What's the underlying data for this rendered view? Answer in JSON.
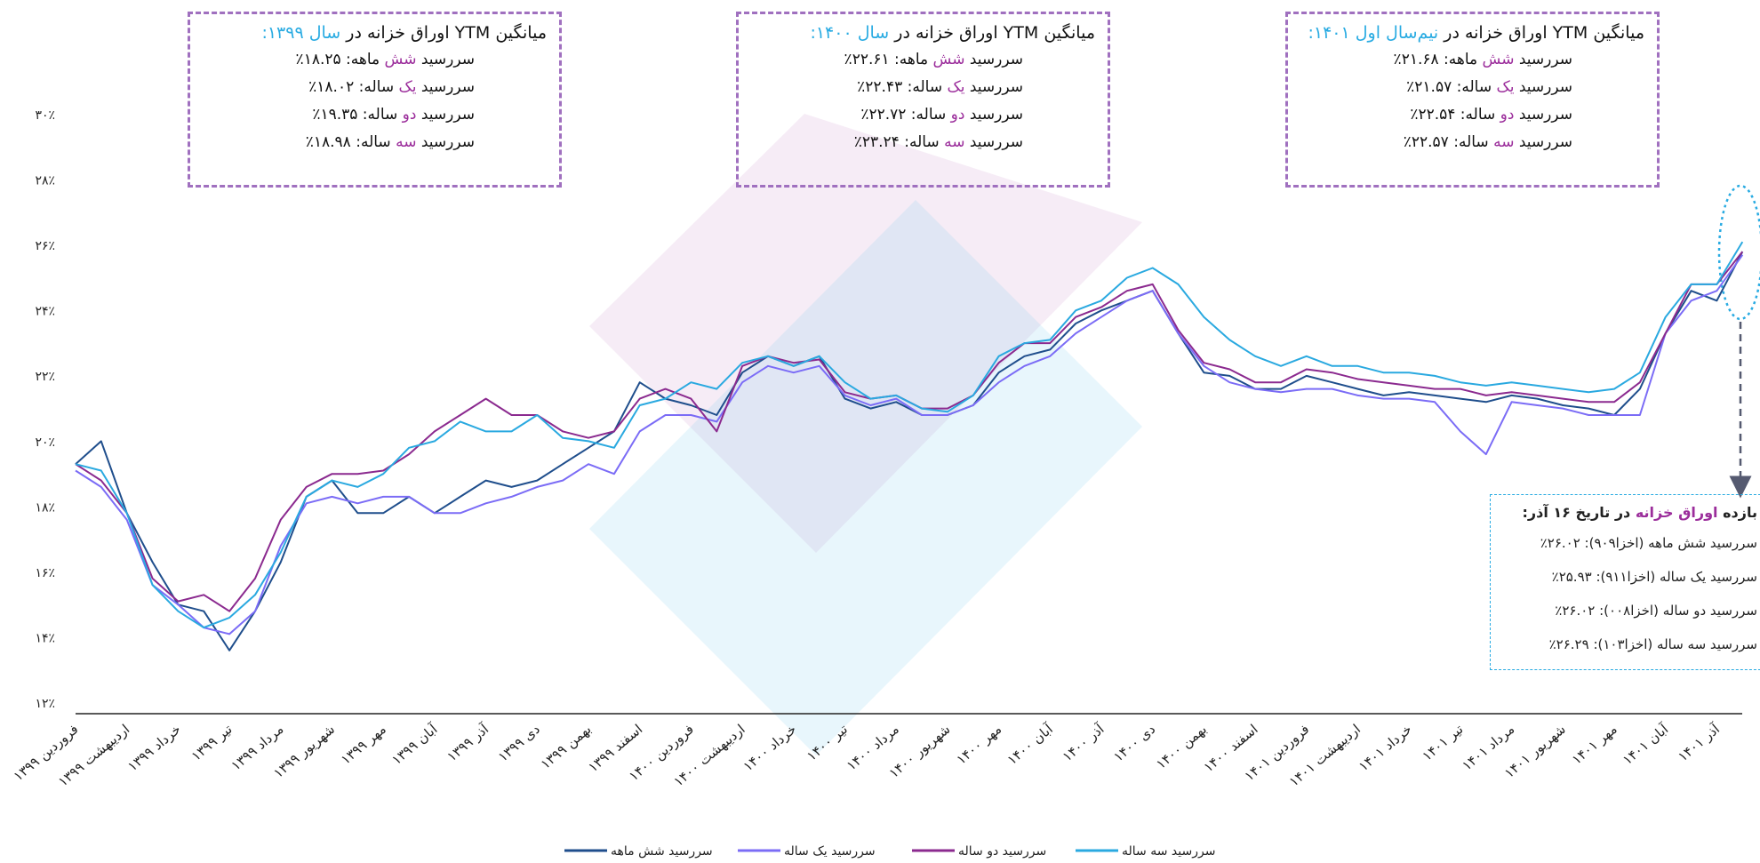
{
  "chart_data": {
    "type": "line",
    "categories": [
      "فروردین ۱۳۹۹",
      null,
      "اردیبهشت ۱۳۹۹",
      null,
      "خرداد ۱۳۹۹",
      null,
      "تیر ۱۳۹۹",
      null,
      "مرداد ۱۳۹۹",
      null,
      "شهریور ۱۳۹۹",
      null,
      "مهر ۱۳۹۹",
      null,
      "آبان ۱۳۹۹",
      null,
      "آذر ۱۳۹۹",
      null,
      "دی ۱۳۹۹",
      null,
      "بهمن ۱۳۹۹",
      null,
      "اسفند ۱۳۹۹",
      null,
      "فروردین ۱۴۰۰",
      null,
      "اردیبهشت ۱۴۰۰",
      null,
      "خرداد ۱۴۰۰",
      null,
      "تیر ۱۴۰۰",
      null,
      "مرداد ۱۴۰۰",
      null,
      "شهریور ۱۴۰۰",
      null,
      "مهر ۱۴۰۰",
      null,
      "آبان ۱۴۰۰",
      null,
      "آذر ۱۴۰۰",
      null,
      "دی ۱۴۰۰",
      null,
      "بهمن ۱۴۰۰",
      null,
      "اسفند ۱۴۰۰",
      null,
      "فروردین ۱۴۰۱",
      null,
      "اردیبهشت ۱۴۰۱",
      null,
      "خرداد ۱۴۰۱",
      null,
      "تیر ۱۴۰۱",
      null,
      "مرداد ۱۴۰۱",
      null,
      "شهریور ۱۴۰۱",
      null,
      "مهر ۱۴۰۱",
      null,
      "آبان ۱۴۰۱",
      null,
      "آذر ۱۴۰۱",
      null
    ],
    "series": [
      {
        "name": "سررسید شش ماهه",
        "color": "#1f4e8c",
        "values": [
          19.5,
          20.2,
          18.0,
          16.5,
          15.2,
          15.0,
          13.8,
          15.0,
          16.5,
          18.5,
          19.0,
          18.0,
          18.0,
          18.5,
          18.0,
          18.5,
          19.0,
          18.8,
          19.0,
          19.5,
          20.0,
          20.5,
          22.0,
          21.5,
          21.3,
          21.0,
          22.3,
          22.8,
          22.5,
          22.8,
          21.5,
          21.2,
          21.4,
          21.0,
          21.0,
          21.3,
          22.3,
          22.8,
          23.0,
          23.8,
          24.2,
          24.5,
          24.8,
          23.5,
          22.3,
          22.2,
          21.8,
          21.8,
          22.2,
          22.0,
          21.8,
          21.6,
          21.7,
          21.6,
          21.5,
          21.4,
          21.6,
          21.5,
          21.3,
          21.2,
          21.0,
          21.8,
          23.5,
          24.8,
          24.5,
          26.0
        ]
      },
      {
        "name": "سررسید یک ساله",
        "color": "#7b6cf6",
        "values": [
          19.3,
          18.8,
          17.8,
          15.8,
          15.2,
          14.5,
          14.3,
          15.0,
          17.0,
          18.3,
          18.5,
          18.3,
          18.5,
          18.5,
          18.0,
          18.0,
          18.3,
          18.5,
          18.8,
          19.0,
          19.5,
          19.2,
          20.5,
          21.0,
          21.0,
          20.8,
          22.0,
          22.5,
          22.3,
          22.5,
          21.6,
          21.3,
          21.5,
          21.0,
          21.0,
          21.3,
          22.0,
          22.5,
          22.8,
          23.5,
          24.0,
          24.5,
          24.8,
          23.5,
          22.5,
          22.0,
          21.8,
          21.7,
          21.8,
          21.8,
          21.6,
          21.5,
          21.5,
          21.4,
          20.5,
          19.8,
          21.4,
          21.3,
          21.2,
          21.0,
          21.0,
          21.0,
          23.5,
          24.5,
          24.8,
          25.9
        ]
      },
      {
        "name": "سررسید دو ساله",
        "color": "#8b2a8f",
        "values": [
          19.5,
          19.0,
          18.0,
          16.0,
          15.3,
          15.5,
          15.0,
          16.0,
          17.8,
          18.8,
          19.2,
          19.2,
          19.3,
          19.8,
          20.5,
          21.0,
          21.5,
          21.0,
          21.0,
          20.5,
          20.3,
          20.5,
          21.5,
          21.8,
          21.5,
          20.5,
          22.5,
          22.8,
          22.6,
          22.7,
          21.7,
          21.5,
          21.6,
          21.2,
          21.2,
          21.6,
          22.6,
          23.2,
          23.2,
          24.0,
          24.3,
          24.8,
          25.0,
          23.6,
          22.6,
          22.4,
          22.0,
          22.0,
          22.4,
          22.3,
          22.1,
          22.0,
          21.9,
          21.8,
          21.8,
          21.6,
          21.7,
          21.6,
          21.5,
          21.4,
          21.4,
          22.0,
          23.5,
          25.0,
          25.0,
          26.0
        ]
      },
      {
        "name": "سررسید سه ساله",
        "color": "#2aa9e0",
        "values": [
          19.5,
          19.3,
          18.0,
          15.8,
          15.0,
          14.5,
          14.8,
          15.5,
          16.8,
          18.5,
          19.0,
          18.8,
          19.2,
          20.0,
          20.2,
          20.8,
          20.5,
          20.5,
          21.0,
          20.3,
          20.2,
          20.0,
          21.3,
          21.5,
          22.0,
          21.8,
          22.6,
          22.8,
          22.5,
          22.8,
          22.0,
          21.5,
          21.6,
          21.2,
          21.1,
          21.6,
          22.8,
          23.2,
          23.3,
          24.2,
          24.5,
          25.2,
          25.5,
          25.0,
          24.0,
          23.3,
          22.8,
          22.5,
          22.8,
          22.5,
          22.5,
          22.3,
          22.3,
          22.2,
          22.0,
          21.9,
          22.0,
          21.9,
          21.8,
          21.7,
          21.8,
          22.3,
          24.0,
          25.0,
          25.0,
          26.3
        ]
      }
    ],
    "ylim": [
      12,
      30
    ],
    "yticks": [
      {
        "value": 12,
        "label": "۱۲٪"
      },
      {
        "value": 14,
        "label": "۱۴٪"
      },
      {
        "value": 16,
        "label": "۱۶٪"
      },
      {
        "value": 18,
        "label": "۱۸٪"
      },
      {
        "value": 20,
        "label": "۲۰٪"
      },
      {
        "value": 22,
        "label": "۲۲٪"
      },
      {
        "value": 24,
        "label": "۲۴٪"
      },
      {
        "value": 26,
        "label": "۲۶٪"
      },
      {
        "value": 28,
        "label": "۲۸٪"
      },
      {
        "value": 30,
        "label": "۳۰٪"
      }
    ],
    "grid": false,
    "legend": "bottom",
    "annotations": {
      "boxes": [
        {
          "title": [
            "میانگین YTM اوراق خزانه در",
            "سال ۱۳۹۹:"
          ],
          "lines": [
            [
              "سررسید",
              "شش",
              "ماهه: ۱۸.۲۵٪"
            ],
            [
              "سررسید",
              "یک",
              "ساله: ۱۸.۰۲٪"
            ],
            [
              "سررسید",
              "دو",
              "ساله: ۱۹.۳۵٪"
            ],
            [
              "سررسید",
              "سه",
              "ساله: ۱۸.۹۸٪"
            ]
          ]
        },
        {
          "title": [
            "میانگین YTM اوراق خزانه در",
            "سال ۱۴۰۰:"
          ],
          "lines": [
            [
              "سررسید",
              "شش",
              "ماهه: ۲۲.۶۱٪"
            ],
            [
              "سررسید",
              "یک",
              "ساله: ۲۲.۴۳٪"
            ],
            [
              "سررسید",
              "دو",
              "ساله: ۲۲.۷۲٪"
            ],
            [
              "سررسید",
              "سه",
              "ساله: ۲۳.۲۴٪"
            ]
          ]
        },
        {
          "title": [
            "میانگین YTM اوراق خزانه در",
            "نیم‌سال اول ۱۴۰۱:"
          ],
          "lines": [
            [
              "سررسید",
              "شش",
              "ماهه: ۲۱.۶۸٪"
            ],
            [
              "سررسید",
              "یک",
              "ساله: ۲۱.۵۷٪"
            ],
            [
              "سررسید",
              "دو",
              "ساله: ۲۲.۵۴٪"
            ],
            [
              "سررسید",
              "سه",
              "ساله: ۲۲.۵۷٪"
            ]
          ]
        }
      ],
      "latest": {
        "title": [
          "بازده",
          "اوراق خزانه",
          "در تاریخ ۱۶ آذر:"
        ],
        "lines": [
          "سررسید شش ماهه (اخزا۹۰۹): ۲۶.۰۲٪",
          "سررسید یک ساله (اخزا۹۱۱): ۲۵.۹۳٪",
          "سررسید دو ساله (اخزا۰۰۸): ۲۶.۰۲٪",
          "سررسید سه ساله (اخزا۱۰۳): ۲۶.۲۹٪"
        ]
      }
    }
  }
}
